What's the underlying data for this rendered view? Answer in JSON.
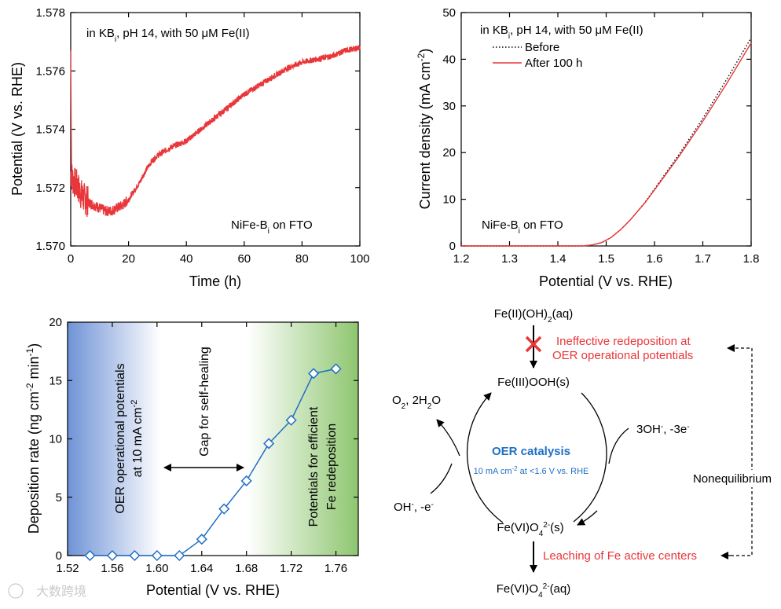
{
  "colors": {
    "red": "#e8363a",
    "blue": "#1f6fc5",
    "black": "#000000",
    "grad_blue": "#6f93d6",
    "grad_green": "#8ec66f",
    "text_red": "#e8363a",
    "text_blue": "#1f6fc5"
  },
  "chart_data": [
    {
      "id": "a",
      "type": "line",
      "title": "",
      "xlabel": "Time (h)",
      "ylabel": "Potential (V vs. RHE)",
      "xlim": [
        0,
        100
      ],
      "ylim": [
        1.57,
        1.578
      ],
      "xticks": [
        0,
        20,
        40,
        60,
        80,
        100
      ],
      "xtick_labels": [
        "0",
        "20",
        "40",
        "60",
        "80",
        "100"
      ],
      "yticks": [
        1.57,
        1.572,
        1.574,
        1.576,
        1.578
      ],
      "ytick_labels": [
        "1.570",
        "1.572",
        "1.574",
        "1.576",
        "1.578"
      ],
      "annotation_top": "in KB",
      "annotation_top_sub": "i",
      "annotation_top_rest": ", pH 14, with 50 μM Fe(II)",
      "annotation_bottom": "NiFe-B",
      "annotation_bottom_sub": "i",
      "annotation_bottom_rest": " on FTO",
      "series": [
        {
          "name": "NiFe-Bi",
          "color": "#e8363a",
          "x": [
            0,
            1,
            2,
            3,
            4,
            6,
            8,
            10,
            12,
            14,
            16,
            18,
            20,
            22,
            24,
            26,
            28,
            30,
            35,
            40,
            45,
            50,
            55,
            60,
            65,
            70,
            75,
            80,
            85,
            90,
            95,
            100
          ],
          "y": [
            1.5725,
            1.5722,
            1.5721,
            1.5719,
            1.5717,
            1.5715,
            1.5714,
            1.5713,
            1.5712,
            1.5712,
            1.5713,
            1.5714,
            1.5716,
            1.5719,
            1.5722,
            1.5726,
            1.5729,
            1.5731,
            1.5734,
            1.5736,
            1.574,
            1.5744,
            1.5748,
            1.5752,
            1.5755,
            1.5758,
            1.5761,
            1.5763,
            1.5764,
            1.5765,
            1.5767,
            1.5768
          ]
        }
      ]
    },
    {
      "id": "b",
      "type": "line",
      "title": "",
      "xlabel": "Potential (V vs. RHE)",
      "ylabel": "Current density (mA cm",
      "ylabel_sup": "-2",
      "ylabel_end": ")",
      "xlim": [
        1.2,
        1.8
      ],
      "ylim": [
        0,
        50
      ],
      "xticks": [
        1.2,
        1.3,
        1.4,
        1.5,
        1.6,
        1.7,
        1.8
      ],
      "xtick_labels": [
        "1.2",
        "1.3",
        "1.4",
        "1.5",
        "1.6",
        "1.7",
        "1.8"
      ],
      "yticks": [
        0,
        10,
        20,
        30,
        40,
        50
      ],
      "ytick_labels": [
        "0",
        "10",
        "20",
        "30",
        "40",
        "50"
      ],
      "annotation_top": "in KB",
      "annotation_top_sub": "i",
      "annotation_top_rest": ", pH 14, with 50 μM Fe(II)",
      "annotation_bottom": "NiFe-B",
      "annotation_bottom_sub": "i",
      "annotation_bottom_rest": " on FTO",
      "series": [
        {
          "name": "Before",
          "style": "dotted",
          "color": "#000000",
          "x": [
            1.2,
            1.45,
            1.47,
            1.49,
            1.51,
            1.53,
            1.55,
            1.58,
            1.6,
            1.65,
            1.7,
            1.75,
            1.8
          ],
          "y": [
            0,
            0,
            0.2,
            0.7,
            1.8,
            3.5,
            5.6,
            9.3,
            12.2,
            19.5,
            27.3,
            35.8,
            44.6
          ]
        },
        {
          "name": "After 100 h",
          "style": "solid",
          "color": "#e8363a",
          "x": [
            1.2,
            1.45,
            1.47,
            1.49,
            1.51,
            1.53,
            1.55,
            1.58,
            1.6,
            1.65,
            1.7,
            1.75,
            1.8
          ],
          "y": [
            0,
            0,
            0.2,
            0.7,
            1.8,
            3.5,
            5.6,
            9.2,
            12.0,
            19.1,
            26.7,
            34.9,
            43.5
          ]
        }
      ]
    },
    {
      "id": "c",
      "type": "line",
      "title": "",
      "xlabel": "Potential (V vs. RHE)",
      "ylabel": "Deposition rate (ng cm",
      "ylabel_sup1": "-2",
      "ylabel_mid": " min",
      "ylabel_sup2": "-1",
      "ylabel_end": ")",
      "xlim": [
        1.52,
        1.78
      ],
      "ylim": [
        0,
        20
      ],
      "xticks": [
        1.52,
        1.56,
        1.6,
        1.64,
        1.68,
        1.72,
        1.76
      ],
      "xtick_labels": [
        "1.52",
        "1.56",
        "1.60",
        "1.64",
        "1.68",
        "1.72",
        "1.76"
      ],
      "yticks": [
        0,
        5,
        10,
        15,
        20
      ],
      "ytick_labels": [
        "0",
        "5",
        "10",
        "15",
        "20"
      ],
      "region_left_1": "OER operational potentials",
      "region_left_2": "at 10 mA cm",
      "region_left_2_sup": "-2",
      "region_mid": "Gap for self-healing",
      "region_right_1": "Potentials for efficient",
      "region_right_2": "Fe redeposition",
      "series": [
        {
          "name": "Deposition rate",
          "color": "#1f6fc5",
          "marker": "diamond-open",
          "x": [
            1.54,
            1.56,
            1.58,
            1.6,
            1.62,
            1.64,
            1.66,
            1.68,
            1.7,
            1.72,
            1.74,
            1.76
          ],
          "y": [
            0,
            0,
            0,
            0,
            0,
            1.4,
            4.0,
            6.4,
            9.6,
            11.6,
            15.6,
            16.0
          ]
        }
      ]
    }
  ],
  "scheme": {
    "top_species": "Fe(II)(OH)",
    "top_species_sub": "2",
    "top_species_end": "(aq)",
    "cycle_top": "Fe(III)OOH(s)",
    "cycle_bottom": "Fe(VI)O",
    "cycle_bottom_sub": "4",
    "cycle_bottom_sup": "2-",
    "cycle_bottom_end": "(s)",
    "bottom_species": "Fe(VI)O",
    "bottom_species_sub": "4",
    "bottom_species_sup": "2-",
    "bottom_species_end": "(aq)",
    "left_top_a": "O",
    "left_top_sub": "2",
    "left_top_b": ", 2H",
    "left_top_sub2": "2",
    "left_top_c": "O",
    "left_bottom_a": "OH",
    "left_bottom_sup": "-",
    "left_bottom_b": ", -e",
    "left_bottom_sup2": "-",
    "right_top_a": "3OH",
    "right_top_sup": "-",
    "right_top_b": ", -3e",
    "right_top_sup2": "-",
    "center_title": "OER catalysis",
    "center_sub_a": "10 mA cm",
    "center_sub_sup": "-2",
    "center_sub_b": " at <1.6 V vs. RHE",
    "ineffective_1": "Ineffective redeposition at",
    "ineffective_2": "OER operational potentials",
    "leaching": "Leaching of Fe active centers",
    "nonequilibrium": "Nonequilibrium"
  },
  "watermark": "大数跨境"
}
